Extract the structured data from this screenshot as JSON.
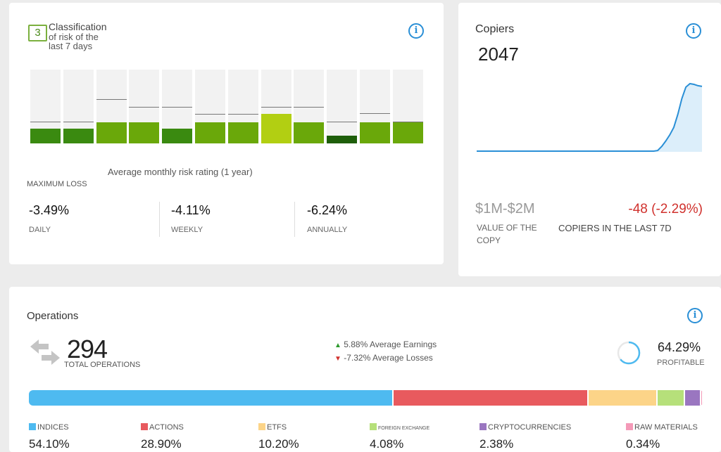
{
  "risk": {
    "level": "3",
    "title_line1": "Classification",
    "title_line2": "of risk of the",
    "title_line3": "last 7 days",
    "bars": [
      {
        "level": 0.2,
        "marker": 0.29,
        "color": "#3a8a10"
      },
      {
        "level": 0.2,
        "marker": 0.29,
        "color": "#3a8a10"
      },
      {
        "level": 0.29,
        "marker": 0.59,
        "color": "#6aa80a"
      },
      {
        "level": 0.29,
        "marker": 0.49,
        "color": "#6aa80a"
      },
      {
        "level": 0.2,
        "marker": 0.49,
        "color": "#3a8a10"
      },
      {
        "level": 0.29,
        "marker": 0.39,
        "color": "#6aa80a"
      },
      {
        "level": 0.29,
        "marker": 0.39,
        "color": "#6aa80a"
      },
      {
        "level": 0.4,
        "marker": 0.49,
        "color": "#b2cf12"
      },
      {
        "level": 0.29,
        "marker": 0.49,
        "color": "#6aa80a"
      },
      {
        "level": 0.1,
        "marker": 0.29,
        "color": "#1e5e0a"
      },
      {
        "level": 0.29,
        "marker": 0.4,
        "color": "#6aa80a"
      },
      {
        "level": 0.29,
        "marker": 0.29,
        "color": "#6aa80a"
      }
    ],
    "caption": "Average monthly risk rating (1 year)",
    "max_loss_label": "MAXIMUM LOSS",
    "stats": [
      {
        "value": "-3.49%",
        "label": "DAILY"
      },
      {
        "value": "-4.11%",
        "label": "WEEKLY"
      },
      {
        "value": "-6.24%",
        "label": "ANNUALLY"
      }
    ]
  },
  "copiers": {
    "title": "Copiers",
    "count": "2047",
    "value": "$1M-$2M",
    "value_label": "VALUE OF THE COPY",
    "change": "-48 (-2.29%)",
    "change_label": "COPIERS IN THE LAST 7D",
    "trend": [
      1,
      1,
      1,
      1,
      1,
      1,
      1,
      1,
      1,
      1,
      1,
      1,
      1,
      1,
      1,
      1,
      1,
      1,
      1,
      1,
      1,
      1,
      1,
      1,
      1,
      1,
      1,
      1,
      1,
      1,
      1,
      1,
      1,
      1,
      1,
      1,
      1,
      1,
      1,
      1,
      1,
      1,
      1,
      1,
      1,
      2,
      8,
      16,
      25,
      36,
      55,
      78,
      95,
      100,
      99,
      97,
      96
    ],
    "line_color": "#2a8fd6",
    "fill_color": "#dceefa"
  },
  "operations": {
    "title": "Operations",
    "total": "294",
    "total_label": "TOTAL OPERATIONS",
    "avg_earnings": "5.88% Average Earnings",
    "avg_losses": "-7.32% Average Losses",
    "profitable": "64.29%",
    "profitable_fraction": 0.6429,
    "profitable_label": "PROFITABLE",
    "allocation": [
      {
        "label": "INDICES",
        "pct": "54.10%",
        "value": 54.1,
        "color": "#4ebaf0"
      },
      {
        "label": "ACTIONS",
        "pct": "28.90%",
        "value": 28.9,
        "color": "#e85a5e"
      },
      {
        "label": "ETFS",
        "pct": "10.20%",
        "value": 10.2,
        "color": "#fcd488"
      },
      {
        "label": "FOREIGN EXCHANGE",
        "pct": "4.08%",
        "value": 4.08,
        "color": "#b6e07a"
      },
      {
        "label": "CRYPTOCURRENCIES",
        "pct": "2.38%",
        "value": 2.38,
        "color": "#9a76c0"
      },
      {
        "label": "RAW MATERIALS",
        "pct": "0.34%",
        "value": 0.34,
        "color": "#f49ab8"
      }
    ]
  }
}
